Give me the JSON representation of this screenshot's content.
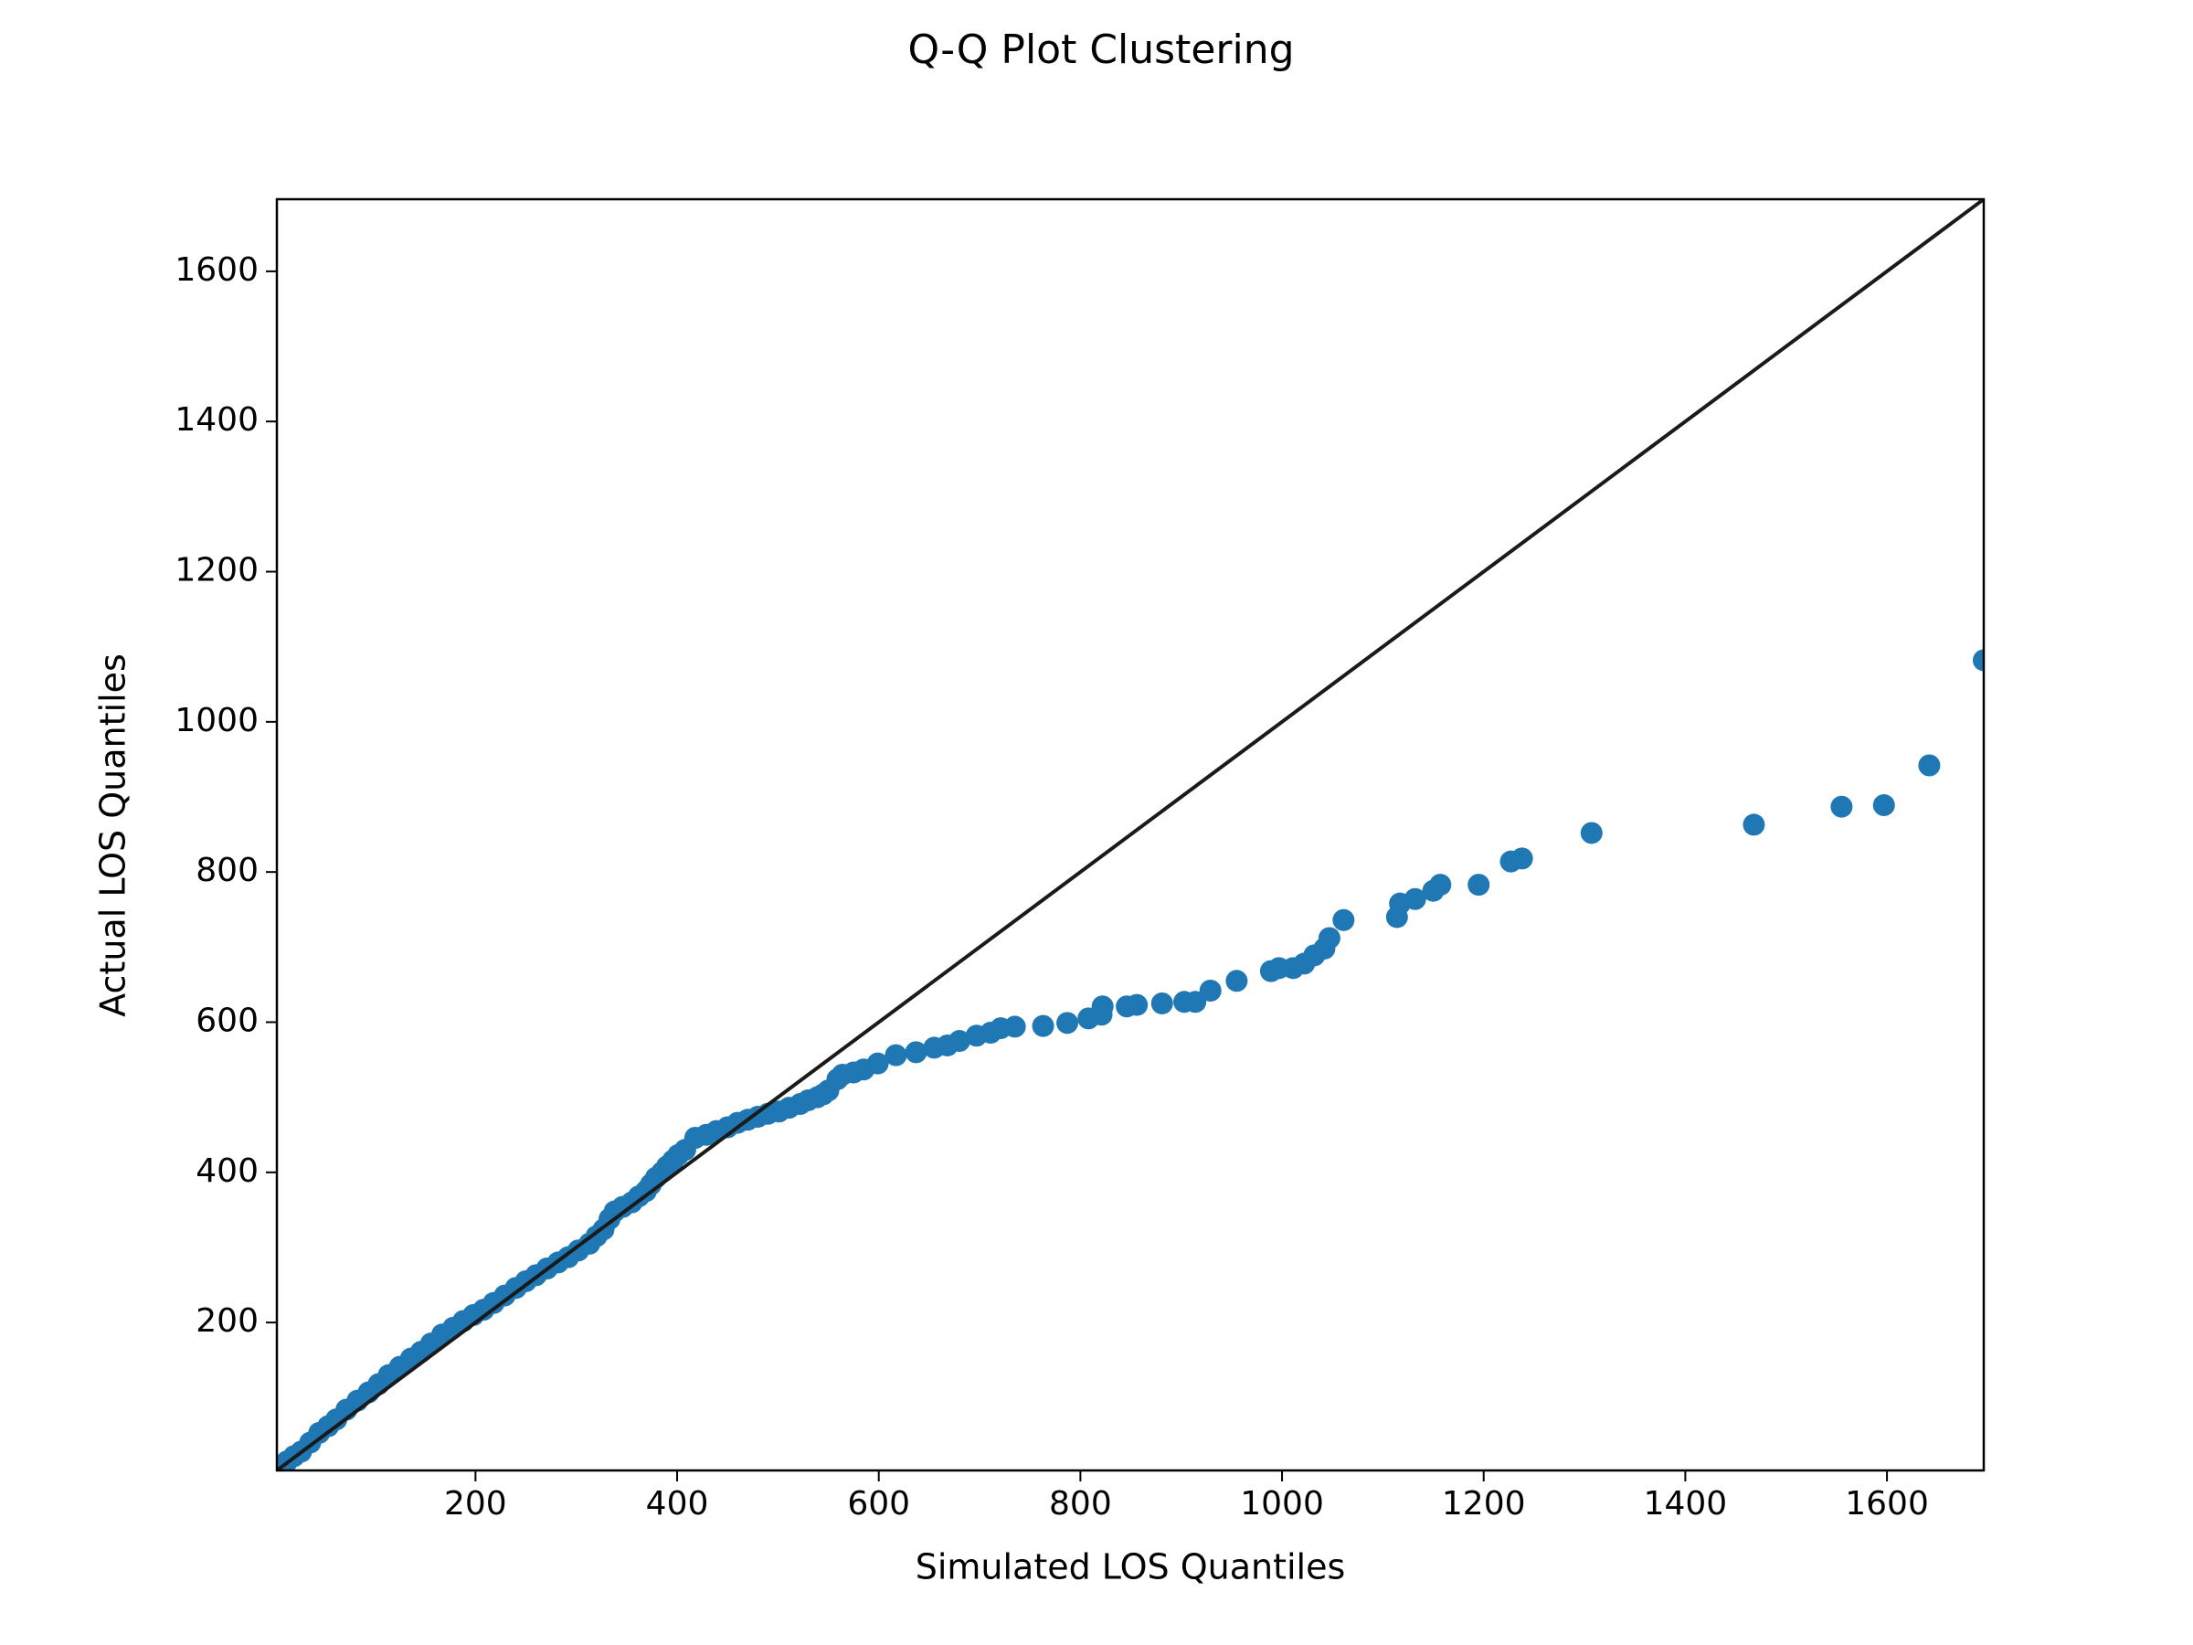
{
  "chart_data": {
    "type": "scatter",
    "title": "Q-Q Plot Clustering",
    "x_label": "Simulated LOS Quantiles",
    "y_label": "Actual LOS Quantiles",
    "xlim": [
      3,
      1696
    ],
    "ylim": [
      3,
      1696
    ],
    "xticks": [
      200,
      400,
      600,
      800,
      1000,
      1200,
      1400,
      1600
    ],
    "yticks": [
      200,
      400,
      600,
      800,
      1000,
      1200,
      1400,
      1600
    ],
    "reference_line": {
      "x": [
        3,
        1696
      ],
      "y": [
        3,
        1696
      ],
      "color": "#1a1a1a"
    },
    "series": [
      {
        "color": "#1f77b4",
        "x": [
          13,
          20,
          27,
          36,
          45,
          54,
          62,
          72,
          83,
          94,
          104,
          114,
          125,
          136,
          146,
          156,
          167,
          178,
          188,
          198,
          208,
          218,
          229,
          240,
          250,
          260,
          271,
          282,
          292,
          302,
          313,
          320,
          327,
          333,
          338,
          346,
          355,
          362,
          369,
          374,
          379,
          385,
          390,
          396,
          401,
          408,
          418,
          429,
          439,
          450,
          460,
          470,
          480,
          490,
          501,
          511,
          522,
          530,
          539,
          545,
          550,
          559,
          564,
          575,
          585,
          599,
          617,
          637,
          655,
          668,
          680,
          697,
          711,
          721,
          735,
          763,
          787,
          808,
          821,
          822,
          846,
          856,
          881,
          903,
          914,
          929,
          955,
          989,
          997,
          1011,
          1022,
          1032,
          1042,
          1047,
          1061,
          1114,
          1117,
          1132,
          1150,
          1157,
          1195,
          1227,
          1238,
          1307,
          1468,
          1555,
          1597,
          1642,
          1696
        ],
        "values": [
          15,
          22,
          28,
          40,
          53,
          62,
          71,
          84,
          96,
          107,
          118,
          130,
          141,
          152,
          161,
          172,
          184,
          193,
          202,
          210,
          217,
          226,
          236,
          246,
          255,
          263,
          272,
          280,
          287,
          296,
          305,
          315,
          324,
          338,
          348,
          354,
          360,
          368,
          375,
          384,
          393,
          400,
          408,
          416,
          423,
          430,
          446,
          450,
          455,
          460,
          466,
          470,
          474,
          478,
          481,
          486,
          491,
          496,
          500,
          504,
          509,
          524,
          530,
          533,
          537,
          545,
          556,
          560,
          566,
          569,
          575,
          582,
          586,
          592,
          594,
          595,
          599,
          605,
          610,
          621,
          621,
          623,
          625,
          627,
          627,
          642,
          655,
          668,
          672,
          672,
          678,
          689,
          698,
          712,
          736,
          740,
          758,
          764,
          775,
          783,
          783,
          814,
          818,
          852,
          863,
          887,
          889,
          942,
          1082
        ]
      }
    ]
  }
}
